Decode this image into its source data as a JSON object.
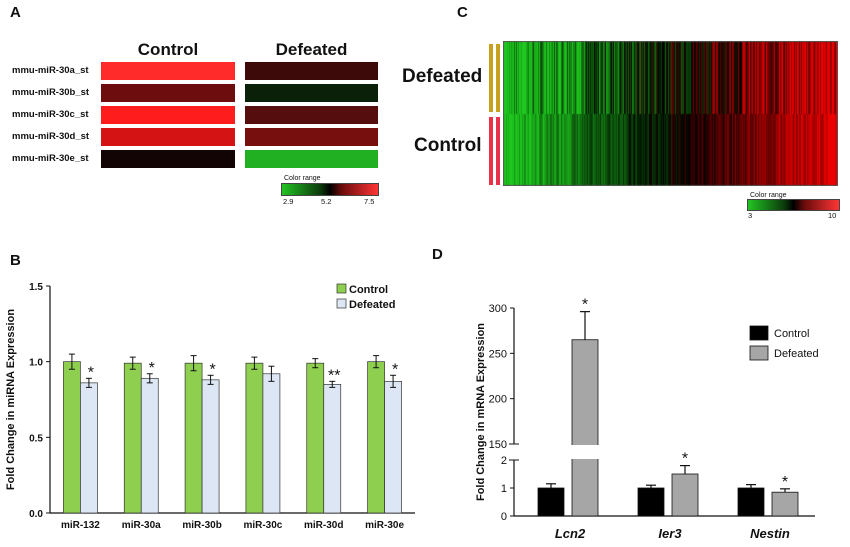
{
  "panel_a": {
    "letter": "A",
    "col_titles": [
      "Control",
      "Defeated"
    ],
    "rows": [
      "mmu-miR-30a_st",
      "mmu-miR-30b_st",
      "mmu-miR-30c_st",
      "mmu-miR-30d_st",
      "mmu-miR-30e_st"
    ],
    "control_colors": [
      "#ff2a2a",
      "#6e0d0d",
      "#ff1c1c",
      "#d41414",
      "#120404"
    ],
    "defeated_colors": [
      "#3e0909",
      "#0b2008",
      "#560d0d",
      "#780f0f",
      "#21b021"
    ],
    "colorbar": {
      "title": "Color range",
      "ticks": [
        "2.9",
        "5.2",
        "7.5"
      ]
    }
  },
  "panel_c": {
    "letter": "C",
    "groups": [
      "Defeated",
      "Control"
    ],
    "group_colors": [
      "#c8a020",
      "#e8324a"
    ],
    "colorbar": {
      "title": "Color range",
      "ticks": [
        "3",
        "10"
      ]
    }
  },
  "chart_data": [
    {
      "type": "bar",
      "panel": "B",
      "categories": [
        "miR-132",
        "miR-30a",
        "miR-30b",
        "miR-30c",
        "miR-30d",
        "miR-30e"
      ],
      "series": [
        {
          "name": "Control",
          "color": "#8fcf4f",
          "values": [
            1.0,
            0.99,
            0.99,
            0.99,
            0.99,
            1.0
          ],
          "errors": [
            0.05,
            0.04,
            0.05,
            0.04,
            0.03,
            0.04
          ]
        },
        {
          "name": "Defeated",
          "color": "#dce6f5",
          "values": [
            0.86,
            0.89,
            0.88,
            0.92,
            0.85,
            0.87
          ],
          "errors": [
            0.03,
            0.03,
            0.03,
            0.05,
            0.02,
            0.04
          ]
        }
      ],
      "significance": [
        "*",
        "*",
        "*",
        "",
        "**",
        "*"
      ],
      "ylabel": "Fold Change in miRNA Expression",
      "xlabel": "",
      "ylim": [
        0,
        1.5
      ],
      "yticks": [
        "0.0",
        "0.5",
        "1.0",
        "1.5"
      ],
      "legend_position": "top-right"
    },
    {
      "type": "bar",
      "panel": "D",
      "categories": [
        "Lcn2",
        "Ier3",
        "Nestin"
      ],
      "series": [
        {
          "name": "Control",
          "color": "#000000",
          "values": [
            1.0,
            1.0,
            1.0
          ],
          "errors": [
            0.15,
            0.1,
            0.12
          ]
        },
        {
          "name": "Defeated",
          "color": "#a6a6a6",
          "values": [
            265,
            1.5,
            0.85
          ],
          "errors": [
            31,
            0.3,
            0.12
          ]
        }
      ],
      "significance": [
        "*",
        "*",
        "*"
      ],
      "ylabel": "Fold Change in mRNA Expression",
      "xlabel": "",
      "axis_break": {
        "lower": [
          0,
          2
        ],
        "upper": [
          150,
          300
        ]
      },
      "yticks_lower": [
        "0",
        "1",
        "2"
      ],
      "yticks_upper": [
        "150",
        "200",
        "250",
        "300"
      ],
      "legend_position": "top-right"
    }
  ]
}
